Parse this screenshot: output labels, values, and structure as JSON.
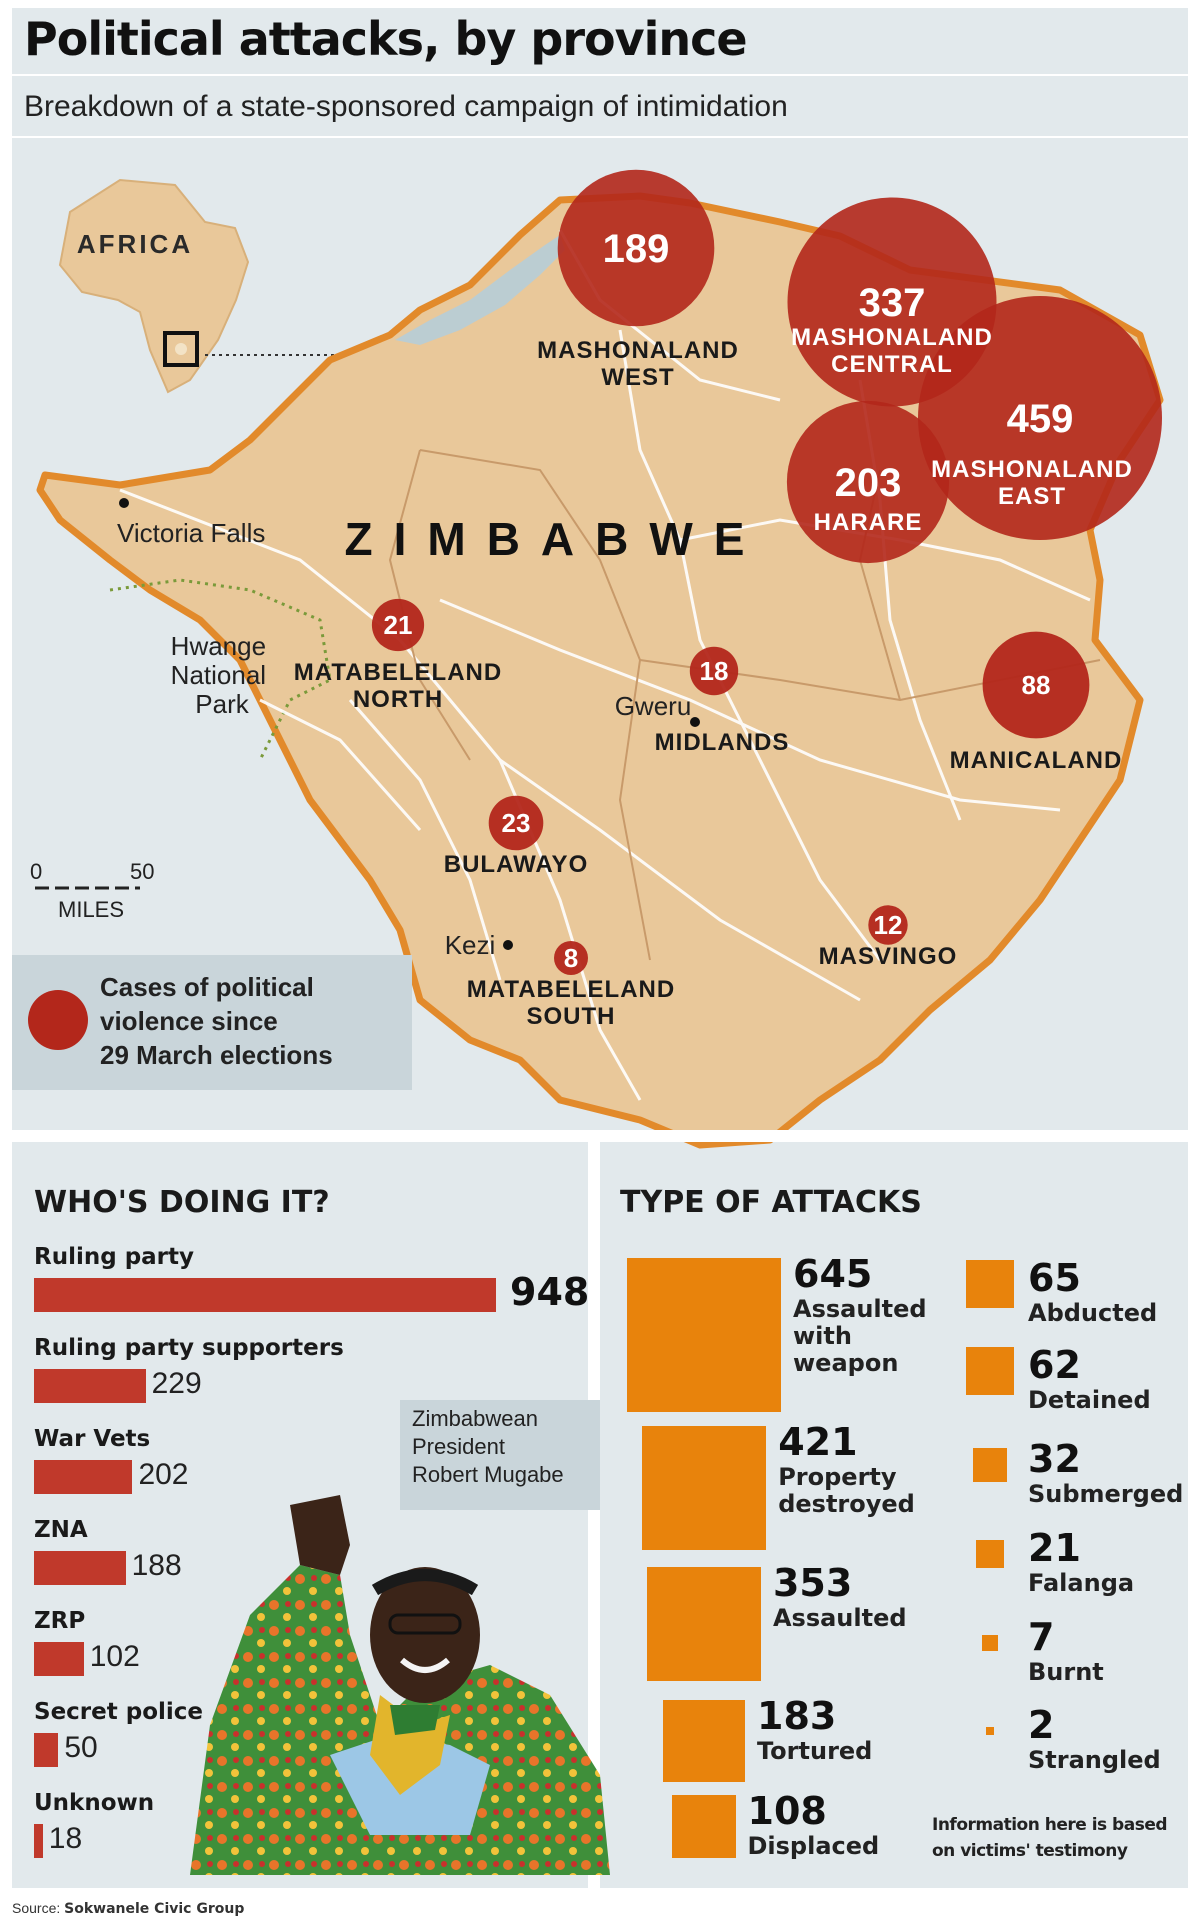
{
  "header": {
    "title": "Political attacks, by province",
    "subtitle": "Breakdown of a state-sponsored campaign of intimidation"
  },
  "map": {
    "inset_label": "AFRICA",
    "country_label": "ZIMBABWE",
    "places": {
      "victoria_falls": "Victoria Falls",
      "hwange": [
        "Hwange",
        "National",
        "Park"
      ],
      "gweru": "Gweru",
      "kezi": "Kezi"
    },
    "scale": {
      "zero": "0",
      "fifty": "50",
      "unit": "MILES"
    },
    "legend_lines": [
      "Cases of political",
      "violence since",
      "29 March elections"
    ],
    "circle_color": "#b3271b",
    "land_color": "#e9c89a",
    "border_color": "#e28a2b"
  },
  "chart_data": [
    {
      "type": "bubble-map",
      "title": "Political attacks, by province",
      "series": [
        {
          "name": "Cases of political violence since 29 March elections",
          "points": [
            {
              "province": "Mashonaland East",
              "label_lines": [
                "MASHONALAND",
                "EAST"
              ],
              "value": 459
            },
            {
              "province": "Mashonaland Central",
              "label_lines": [
                "MASHONALAND",
                "CENTRAL"
              ],
              "value": 337
            },
            {
              "province": "Harare",
              "label_lines": [
                "HARARE"
              ],
              "value": 203
            },
            {
              "province": "Mashonaland West",
              "label_lines": [
                "MASHONALAND",
                "WEST"
              ],
              "value": 189
            },
            {
              "province": "Manicaland",
              "label_lines": [
                "MANICALAND"
              ],
              "value": 88
            },
            {
              "province": "Bulawayo",
              "label_lines": [
                "BULAWAYO"
              ],
              "value": 23
            },
            {
              "province": "Matabeleland North",
              "label_lines": [
                "MATABELELAND",
                "NORTH"
              ],
              "value": 21
            },
            {
              "province": "Midlands",
              "label_lines": [
                "MIDLANDS"
              ],
              "value": 18
            },
            {
              "province": "Masvingo",
              "label_lines": [
                "MASVINGO"
              ],
              "value": 12
            },
            {
              "province": "Matabeleland South",
              "label_lines": [
                "MATABELELAND",
                "SOUTH"
              ],
              "value": 8
            }
          ]
        }
      ]
    },
    {
      "type": "bar",
      "title": "WHO'S DOING IT?",
      "categories": [
        "Ruling party",
        "Ruling party supporters",
        "War Vets",
        "ZNA",
        "ZRP",
        "Secret police",
        "Unknown"
      ],
      "values": [
        948,
        229,
        202,
        188,
        102,
        50,
        18
      ],
      "color": "#c0392b"
    },
    {
      "type": "area-squares",
      "title": "TYPE OF ATTACKS",
      "categories": [
        "Assaulted with weapon",
        "Property destroyed",
        "Assaulted",
        "Tortured",
        "Displaced",
        "Abducted",
        "Detained",
        "Submerged",
        "Falanga",
        "Burnt",
        "Strangled"
      ],
      "label_lines": [
        [
          "Assaulted",
          "with",
          "weapon"
        ],
        [
          "Property",
          "destroyed"
        ],
        [
          "Assaulted"
        ],
        [
          "Tortured"
        ],
        [
          "Displaced"
        ],
        [
          "Abducted"
        ],
        [
          "Detained"
        ],
        [
          "Submerged"
        ],
        [
          "Falanga"
        ],
        [
          "Burnt"
        ],
        [
          "Strangled"
        ]
      ],
      "values": [
        645,
        421,
        353,
        183,
        108,
        65,
        62,
        32,
        21,
        7,
        2
      ],
      "color": "#e8830c"
    }
  ],
  "photo_caption": [
    "Zimbabwean",
    "President",
    "Robert Mugabe"
  ],
  "note": "Information here is based\non victims' testimony",
  "source": {
    "prefix": "Source: ",
    "name": "Sokwanele Civic Group"
  }
}
